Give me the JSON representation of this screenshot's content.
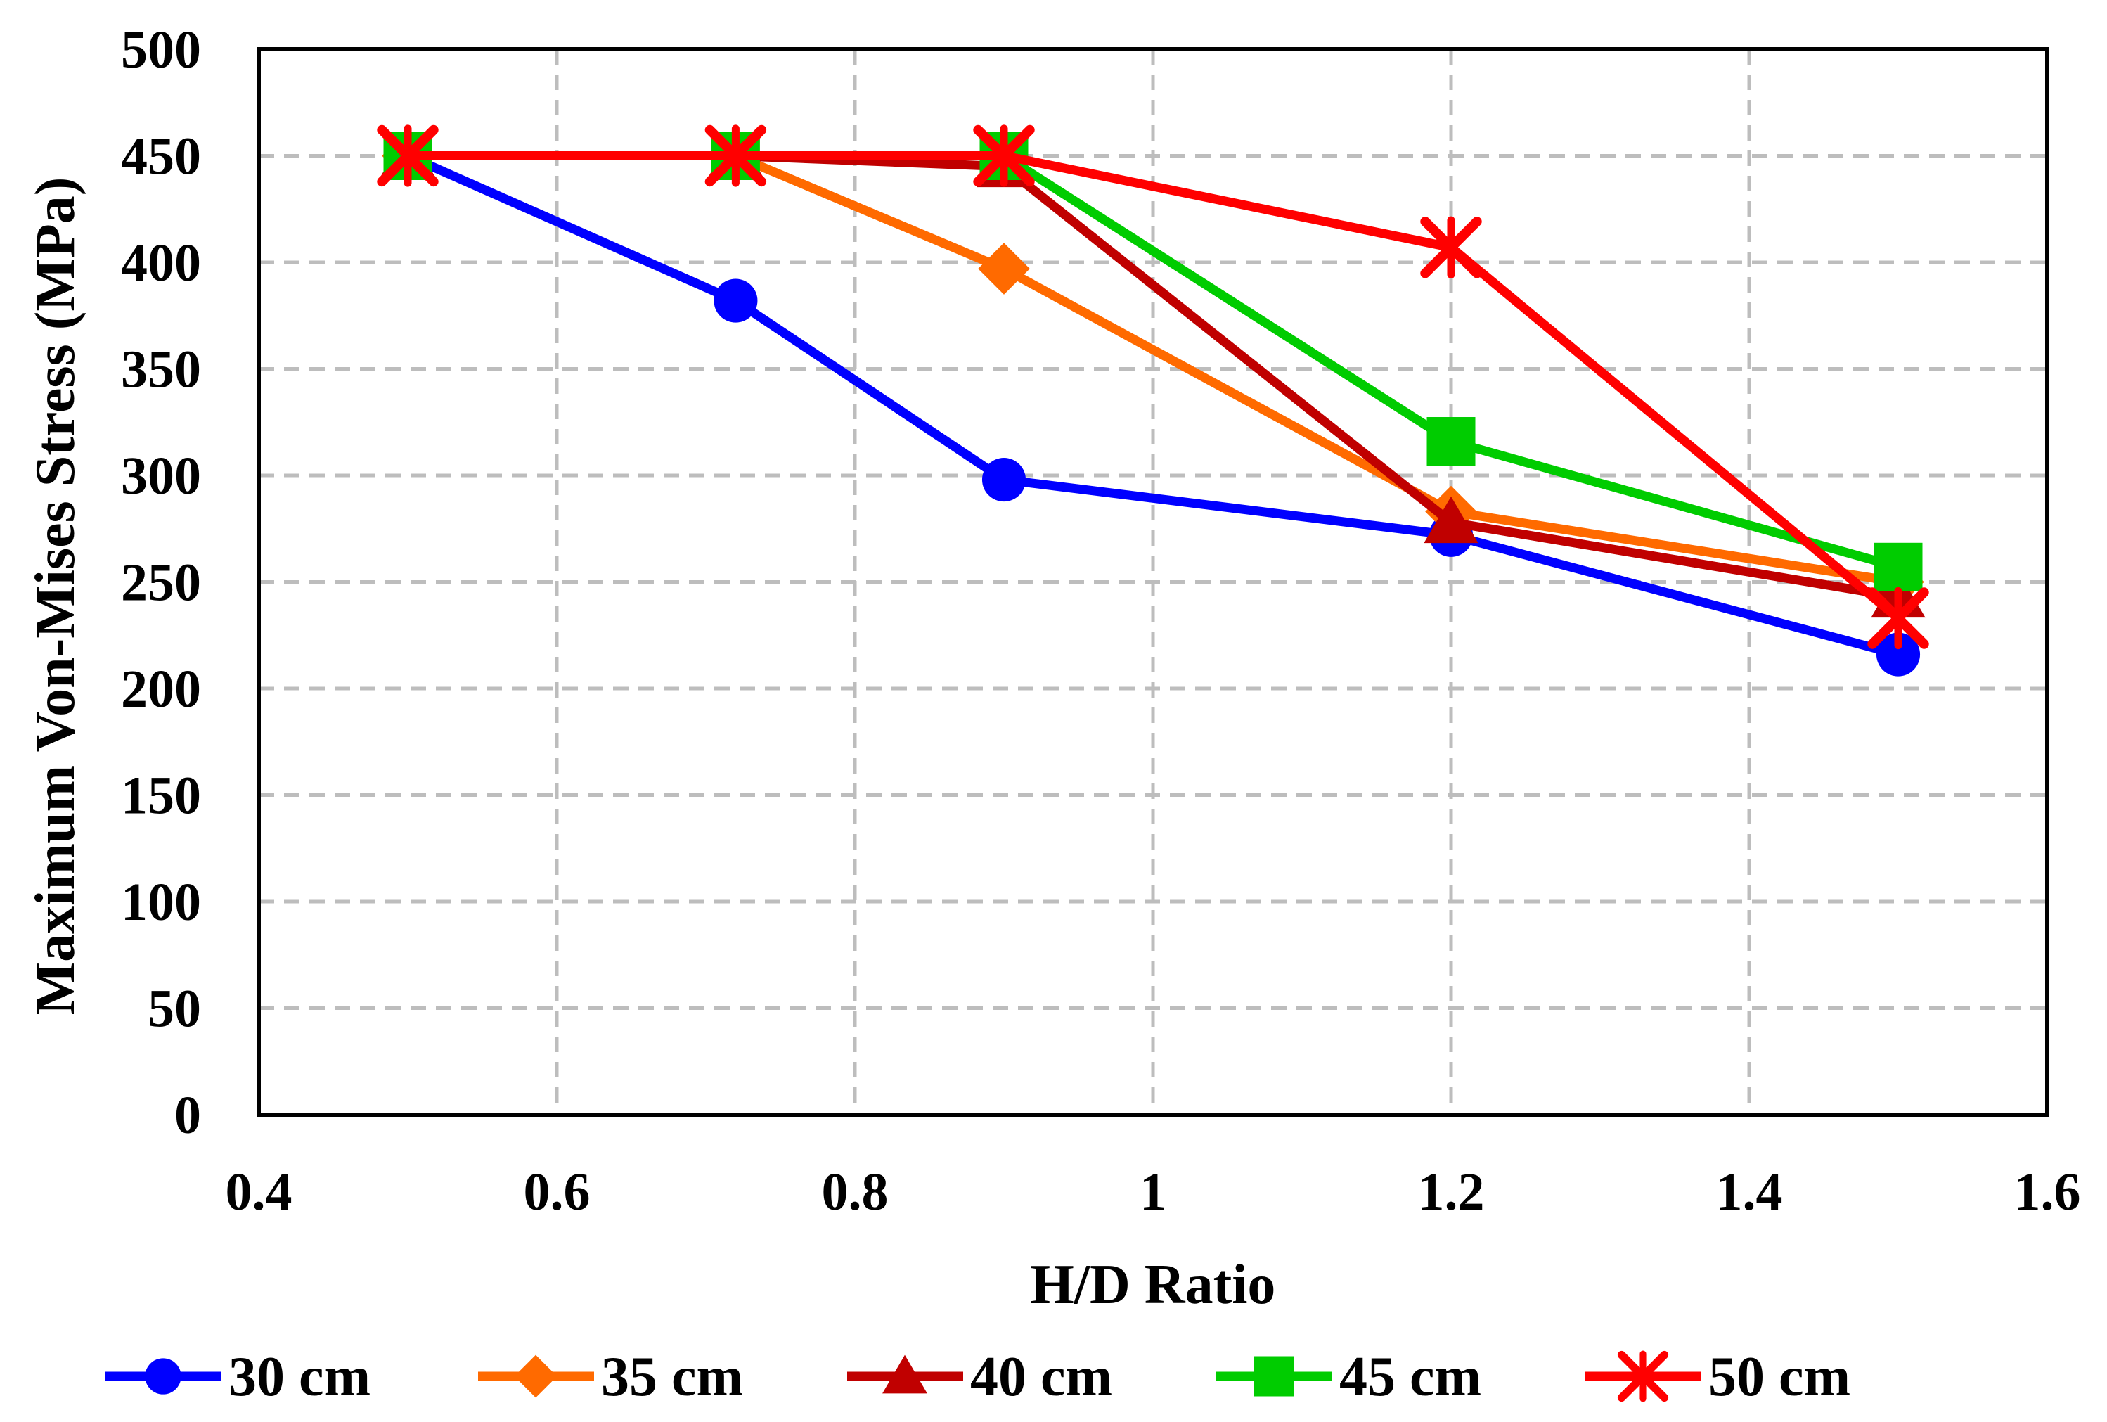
{
  "chart_data": {
    "type": "line",
    "title": "",
    "xlabel": "H/D Ratio",
    "ylabel": "Maximum Von-Mises Stress (MPa)",
    "xlim": [
      0.4,
      1.6
    ],
    "ylim": [
      0,
      500
    ],
    "x_ticks": [
      "0.4",
      "0.6",
      "0.8",
      "1",
      "1.2",
      "1.4",
      "1.6"
    ],
    "y_ticks": [
      "0",
      "50",
      "100",
      "150",
      "200",
      "250",
      "300",
      "350",
      "400",
      "450",
      "500"
    ],
    "grid": true,
    "legend_position": "bottom",
    "x": [
      0.5,
      0.72,
      0.9,
      1.2,
      1.5
    ],
    "series": [
      {
        "name": "30 cm",
        "color": "#0000ff",
        "marker": "circle",
        "values": [
          450,
          382,
          298,
          272,
          216
        ]
      },
      {
        "name": "35 cm",
        "color": "#ff6a00",
        "marker": "diamond",
        "values": [
          450,
          450,
          397,
          283,
          250
        ]
      },
      {
        "name": "40 cm",
        "color": "#c00000",
        "marker": "triangle",
        "values": [
          450,
          450,
          445,
          278,
          243
        ]
      },
      {
        "name": "45 cm",
        "color": "#00cc00",
        "marker": "square",
        "values": [
          450,
          450,
          450,
          316,
          257
        ]
      },
      {
        "name": "50 cm",
        "color": "#ff0000",
        "marker": "star",
        "values": [
          450,
          450,
          450,
          407,
          233
        ]
      }
    ]
  }
}
